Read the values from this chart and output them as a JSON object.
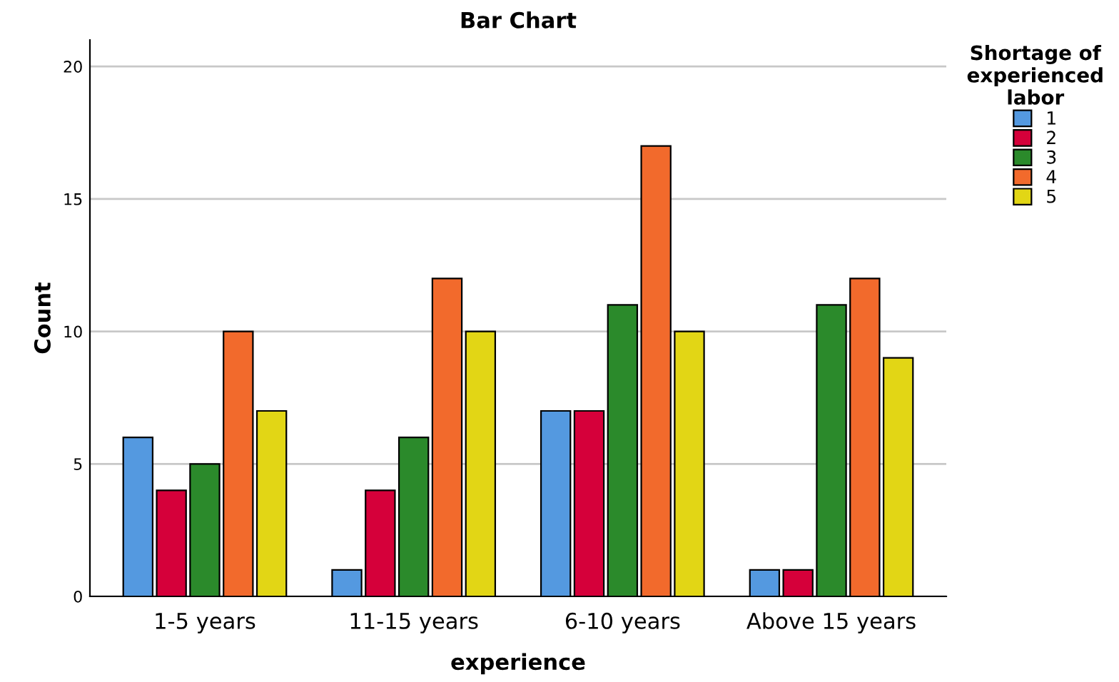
{
  "chart_data": {
    "type": "bar",
    "title": "Bar Chart",
    "xlabel": "experience",
    "ylabel": "Count",
    "legend_title": "Shortage of\nexperienced\nlabor",
    "categories": [
      "1-5 years",
      "11-15 years",
      "6-10 years",
      "Above 15 years"
    ],
    "series": [
      {
        "name": "1",
        "color": "#5499e0",
        "values": [
          6,
          1,
          7,
          1
        ]
      },
      {
        "name": "2",
        "color": "#d5003a",
        "values": [
          4,
          4,
          7,
          1
        ]
      },
      {
        "name": "3",
        "color": "#2b8a2b",
        "values": [
          5,
          6,
          11,
          11
        ]
      },
      {
        "name": "4",
        "color": "#f26a2c",
        "values": [
          10,
          12,
          17,
          12
        ]
      },
      {
        "name": "5",
        "color": "#e2d615",
        "values": [
          7,
          10,
          10,
          9
        ]
      }
    ],
    "ylim": [
      0,
      21
    ],
    "yticks": [
      0,
      5,
      10,
      15,
      20
    ],
    "grid": "y",
    "legend": "top right"
  }
}
